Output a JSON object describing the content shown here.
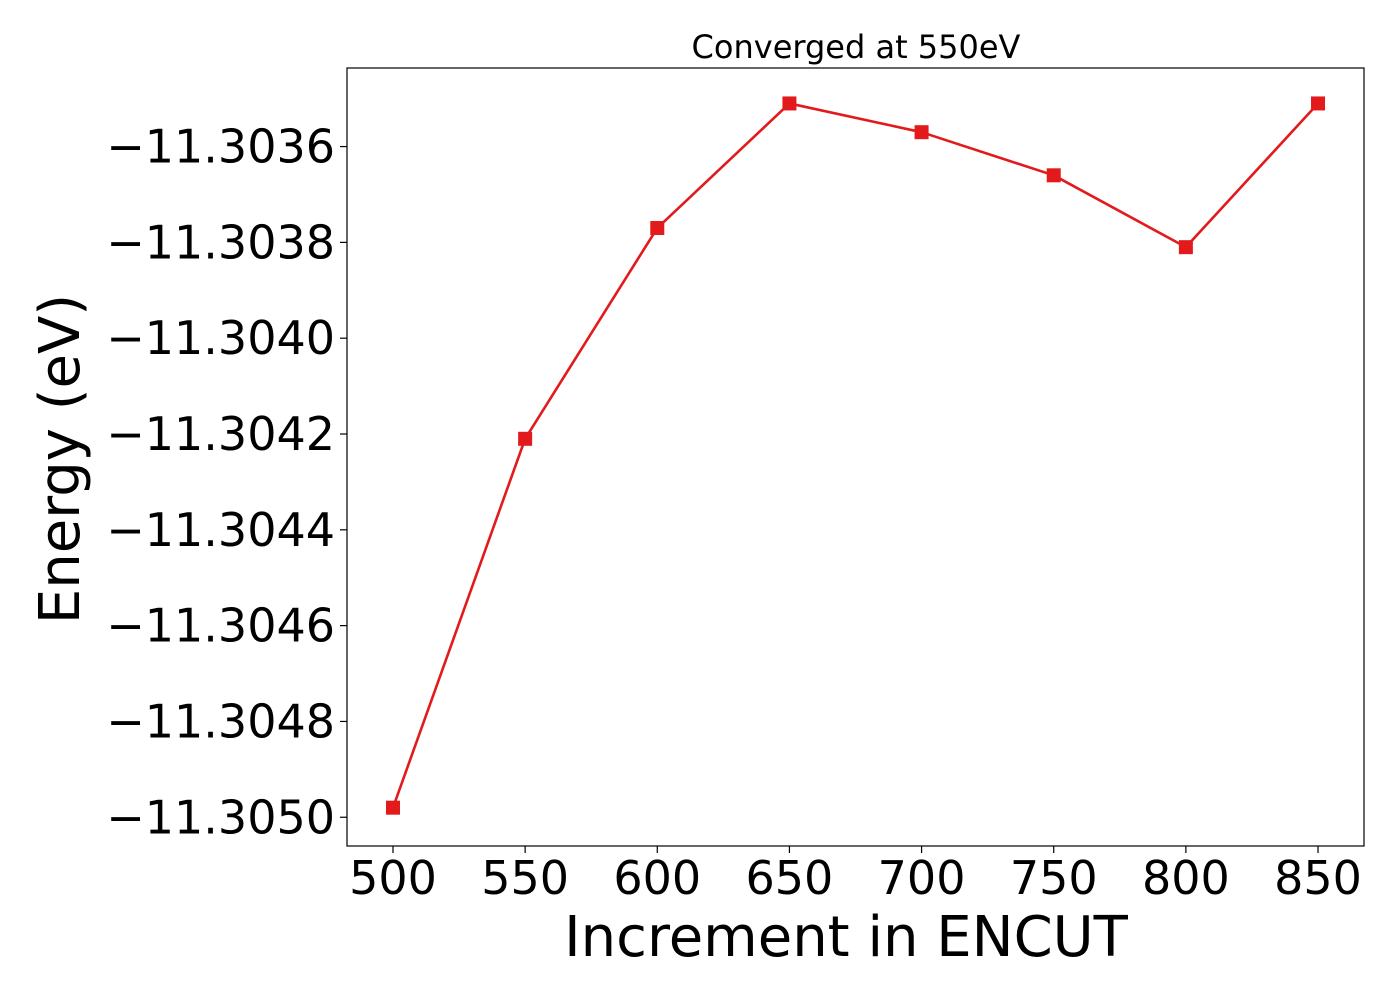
{
  "chart_data": {
    "type": "line",
    "title": "Converged at 550eV",
    "xlabel": "Increment in ENCUT",
    "ylabel": "Energy (eV)",
    "x": [
      500,
      550,
      600,
      650,
      700,
      750,
      800,
      850
    ],
    "series": [
      {
        "values": [
          -11.30498,
          -11.30421,
          -11.30377,
          -11.30351,
          -11.30357,
          -11.30366,
          -11.30381,
          -11.30351
        ]
      }
    ],
    "x_ticks": [
      "500",
      "550",
      "600",
      "650",
      "700",
      "750",
      "800",
      "850"
    ],
    "y_tick_values": [
      -11.305,
      -11.3048,
      -11.3046,
      -11.3044,
      -11.3042,
      -11.304,
      -11.3038,
      -11.3036
    ],
    "y_ticks": [
      "−11.3050",
      "−11.3048",
      "−11.3046",
      "−11.3044",
      "−11.3042",
      "−11.3040",
      "−11.3038",
      "−11.3036"
    ],
    "xlim": [
      482.6,
      867.4
    ],
    "ylim": [
      -11.30506,
      -11.303436
    ],
    "grid": false,
    "legend": false,
    "marker": "square",
    "line_color": "#e31a1c"
  }
}
